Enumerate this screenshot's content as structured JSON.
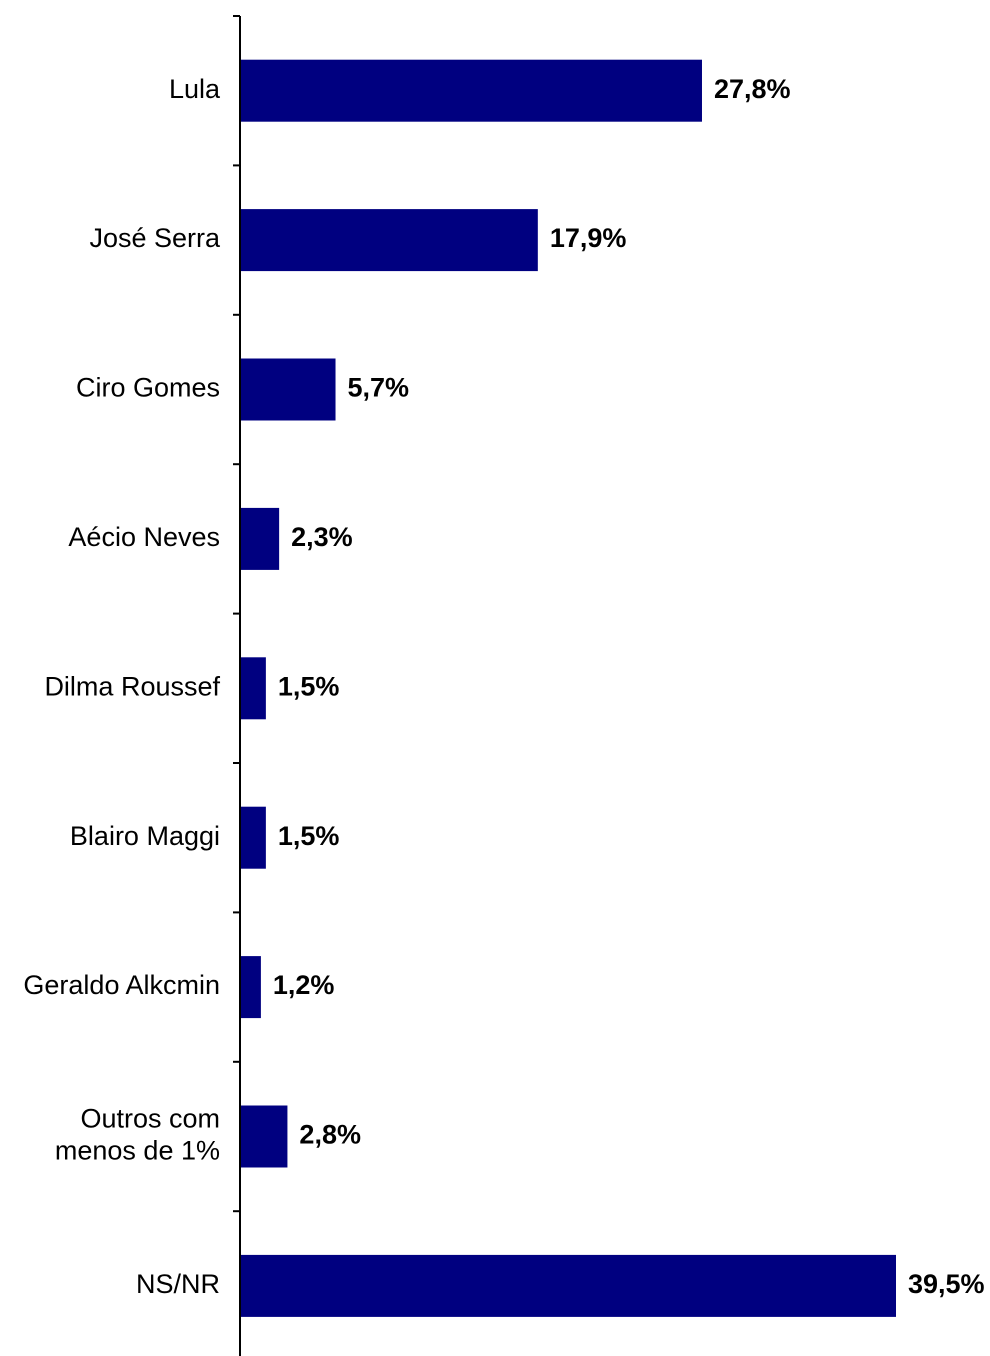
{
  "chart_data": {
    "type": "bar",
    "orientation": "horizontal",
    "categories": [
      "Lula",
      "José Serra",
      "Ciro Gomes",
      "Aécio Neves",
      "Dilma Roussef",
      "Blairo Maggi",
      "Geraldo Alkcmin",
      "Outros com menos de 1%",
      "NS/NR"
    ],
    "category_lines": [
      [
        "Lula"
      ],
      [
        "José Serra"
      ],
      [
        "Ciro Gomes"
      ],
      [
        "Aécio Neves"
      ],
      [
        "Dilma Roussef"
      ],
      [
        "Blairo Maggi"
      ],
      [
        "Geraldo Alkcmin"
      ],
      [
        "Outros com",
        "menos de 1%"
      ],
      [
        "NS/NR"
      ]
    ],
    "values": [
      27.8,
      17.9,
      5.7,
      2.3,
      1.5,
      1.5,
      1.2,
      2.8,
      39.5
    ],
    "data_labels": [
      "27,8%",
      "17,9%",
      "5,7%",
      "2,3%",
      "1,5%",
      "1,5%",
      "1,2%",
      "2,8%",
      "39,5%"
    ],
    "title": "",
    "xlabel": "",
    "ylabel": "",
    "xlim": [
      0,
      39.5
    ],
    "grid": false,
    "legend": "none",
    "bar_color": "#000080"
  }
}
